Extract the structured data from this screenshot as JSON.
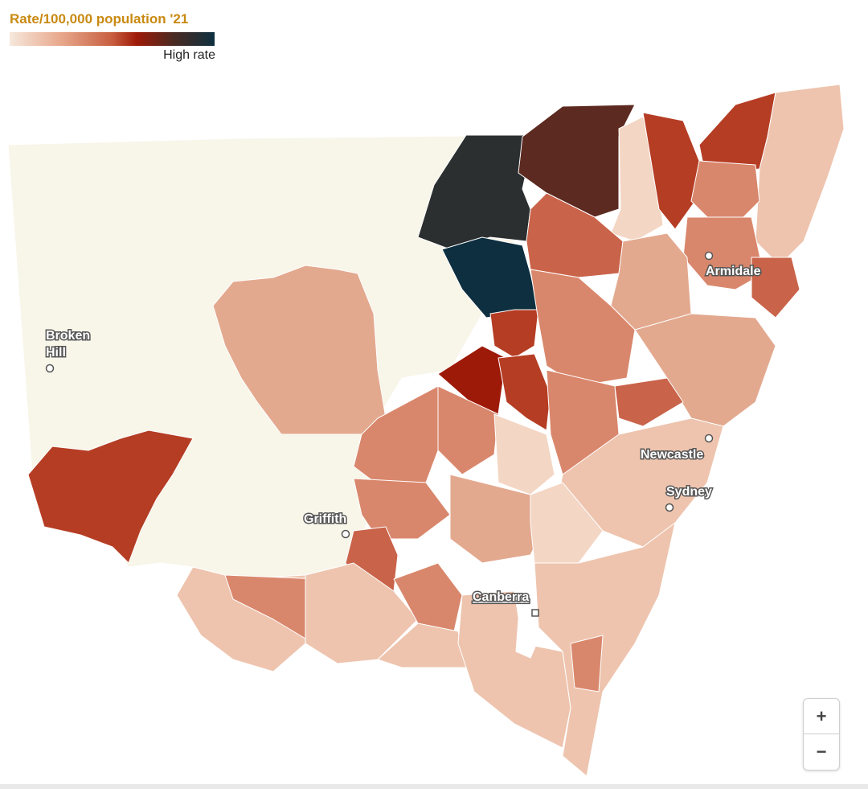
{
  "legend": {
    "title": "Rate/100,000 population '21",
    "high_label": "High rate"
  },
  "colors": {
    "very_low": "#f8f5e9",
    "low": "#eec4ae",
    "low_mid": "#e3a98f",
    "mid": "#d9876c",
    "mid_high": "#c9634a",
    "high": "#b53d24",
    "very_high": "#9e1a08",
    "dark_brown": "#5c2a20",
    "charcoal": "#2c2f30",
    "navy": "#0e2f3f"
  },
  "cities": [
    {
      "name": "Broken\nHill",
      "lines": [
        "Broken",
        "Hill"
      ]
    },
    {
      "name": "Armidale"
    },
    {
      "name": "Newcastle"
    },
    {
      "name": "Sydney"
    },
    {
      "name": "Griffith"
    },
    {
      "name": "Canberra"
    }
  ],
  "zoom": {
    "in_label": "+",
    "out_label": "−"
  }
}
